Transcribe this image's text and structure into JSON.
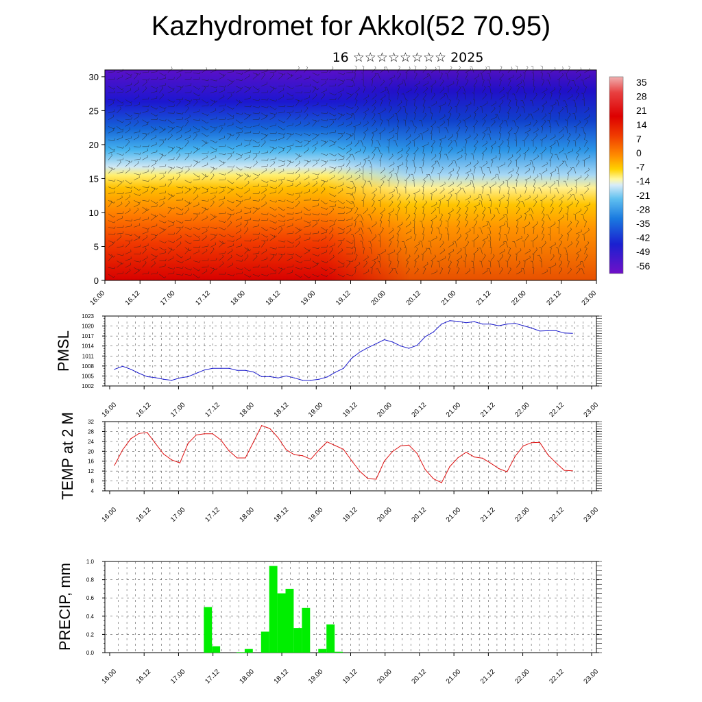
{
  "header": {
    "title": "Kazhydromet for Akkol(52 70.95)",
    "subtitle": "16 ☆☆☆☆☆☆☆☆ 2025"
  },
  "colors": {
    "pmsl_line": "#1a1acc",
    "temp_line": "#dd1111",
    "precip_bar": "#00ee00"
  },
  "chart_data": [
    {
      "type": "heatmap",
      "title": "",
      "xlabel": "",
      "ylabel": "",
      "x_ticks": [
        "16.00",
        "16.12",
        "17.00",
        "17.12",
        "18.00",
        "18.12",
        "19.00",
        "19.12",
        "20.00",
        "20.12",
        "21.00",
        "21.12",
        "22.00",
        "22.12",
        "23.00"
      ],
      "y_ticks": [
        0,
        5,
        10,
        15,
        20,
        25,
        30
      ],
      "ylim": [
        0,
        31
      ],
      "colorbar_labels": [
        "35",
        "28",
        "21",
        "14",
        "7",
        "0",
        "-7",
        "-14",
        "-21",
        "-28",
        "-35",
        "-42",
        "-49",
        "-56"
      ],
      "overlay": "wind barbs"
    },
    {
      "type": "line",
      "ylabel": "PMSL",
      "ylim": [
        1002,
        1023
      ],
      "y_ticks": [
        1002,
        1005,
        1008,
        1011,
        1014,
        1017,
        1020,
        1023
      ],
      "x_ticks": [
        "16.00",
        "16.12",
        "17.00",
        "17.12",
        "18.00",
        "18.12",
        "19.00",
        "19.12",
        "20.00",
        "20.12",
        "21.00",
        "21.12",
        "22.00",
        "22.12",
        "23.00"
      ],
      "grid": true,
      "values": [
        1007,
        1007.9,
        1007,
        1005.8,
        1004.8,
        1004.5,
        1004,
        1003.7,
        1004.4,
        1004.8,
        1005.8,
        1006.8,
        1007.3,
        1007.3,
        1007.3,
        1006.7,
        1006.7,
        1006.2,
        1004.8,
        1004.8,
        1004.4,
        1005,
        1004.4,
        1003.7,
        1003.7,
        1004,
        1004.7,
        1006.1,
        1007.3,
        1010.3,
        1012.2,
        1013.5,
        1014.7,
        1015.9,
        1015.2,
        1014,
        1013.3,
        1014.2,
        1016.8,
        1018.2,
        1020.6,
        1021.6,
        1021.4,
        1021,
        1021.3,
        1020.6,
        1020.6,
        1020.1,
        1020.6,
        1020.8,
        1020.1,
        1019.4,
        1018.5,
        1018.6,
        1018.6,
        1017.9,
        1017.8
      ]
    },
    {
      "type": "line",
      "ylabel": "TEMP at 2 M",
      "ylim": [
        4,
        32
      ],
      "y_ticks": [
        4,
        8,
        12,
        16,
        20,
        24,
        28,
        32
      ],
      "x_ticks": [
        "16.00",
        "16.12",
        "17.00",
        "17.12",
        "18.00",
        "18.12",
        "19.00",
        "19.12",
        "20.00",
        "20.12",
        "21.00",
        "21.12",
        "22.00",
        "22.12",
        "23.00"
      ],
      "grid": true,
      "values": [
        14.3,
        20.6,
        25.1,
        27.2,
        27.6,
        23.2,
        18.9,
        16.5,
        15.3,
        23.2,
        26.6,
        27.1,
        27.1,
        24.6,
        20.2,
        17.3,
        17.3,
        23.8,
        30.4,
        29.2,
        25.5,
        20.6,
        18.6,
        18.2,
        16.8,
        20.5,
        23.8,
        22.3,
        20.8,
        16.2,
        11.9,
        8.9,
        8.7,
        16,
        19.9,
        22.2,
        22.5,
        19.1,
        12.6,
        8.9,
        7.3,
        13.8,
        17.4,
        19.6,
        17.7,
        17.2,
        15.2,
        13,
        11.7,
        18,
        22.2,
        23.5,
        23.6,
        18.6,
        15.3,
        12.3,
        12.1
      ]
    },
    {
      "type": "bar",
      "ylabel": "PRECIP, mm",
      "ylim": [
        0,
        1.0
      ],
      "y_ticks": [
        "0.0",
        "0.2",
        "0.4",
        "0.6",
        "0.8",
        "1.0"
      ],
      "x_ticks": [
        "16.00",
        "16.12",
        "17.00",
        "17.12",
        "18.00",
        "18.12",
        "19.00",
        "19.12",
        "20.00",
        "20.12",
        "21.00",
        "21.12",
        "22.00",
        "22.12",
        "23.00"
      ],
      "grid": true,
      "values": [
        0,
        0,
        0,
        0,
        0,
        0,
        0,
        0,
        0,
        0,
        0,
        0.5,
        0.07,
        0,
        0,
        0.005,
        0.04,
        0,
        0.23,
        0.95,
        0.65,
        0.7,
        0.27,
        0.49,
        0,
        0.04,
        0.31,
        0.01,
        0,
        0,
        0,
        0,
        0,
        0,
        0,
        0,
        0,
        0,
        0,
        0,
        0,
        0,
        0,
        0,
        0,
        0,
        0,
        0,
        0,
        0,
        0,
        0,
        0,
        0,
        0,
        0,
        0
      ]
    }
  ]
}
